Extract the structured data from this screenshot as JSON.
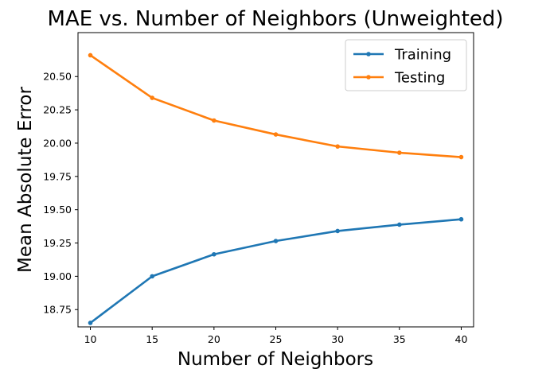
{
  "chart_data": {
    "type": "line",
    "title": "MAE vs. Number of Neighbors (Unweighted)",
    "xlabel": "Number of Neighbors",
    "ylabel": "Mean Absolute Error",
    "x": [
      10,
      15,
      20,
      25,
      30,
      35,
      40
    ],
    "xlim": [
      9,
      41
    ],
    "ylim": [
      18.62,
      20.83
    ],
    "xticks": [
      10,
      15,
      20,
      25,
      30,
      35,
      40
    ],
    "yticks": [
      18.75,
      19.0,
      19.25,
      19.5,
      19.75,
      20.0,
      20.25,
      20.5
    ],
    "ytick_labels": [
      "18.75",
      "19.00",
      "19.25",
      "19.50",
      "19.75",
      "20.00",
      "20.25",
      "20.50"
    ],
    "grid": false,
    "legend_position": "top-right",
    "series": [
      {
        "name": "Training",
        "color": "#1f77b4",
        "values": [
          18.65,
          19.0,
          19.165,
          19.265,
          19.34,
          19.388,
          19.428
        ]
      },
      {
        "name": "Testing",
        "color": "#ff7f0e",
        "values": [
          20.66,
          20.34,
          20.17,
          20.065,
          19.975,
          19.928,
          19.895
        ]
      }
    ]
  }
}
